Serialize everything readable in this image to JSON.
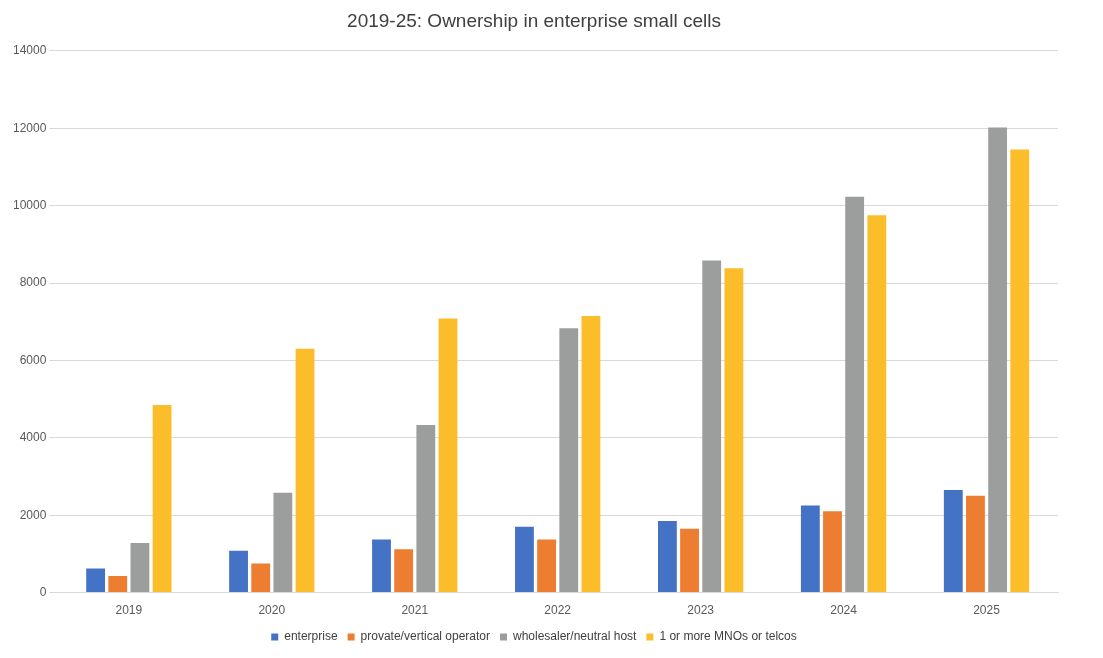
{
  "chart_data": {
    "type": "bar",
    "title": "2019-25: Ownership in enterprise small cells",
    "categories": [
      "2019",
      "2020",
      "2021",
      "2022",
      "2023",
      "2024",
      "2025"
    ],
    "series": [
      {
        "name": "enterprise",
        "color": "#4472c4",
        "values": [
          620,
          1080,
          1370,
          1700,
          1850,
          2250,
          2650
        ]
      },
      {
        "name": "provate/vertical operator",
        "color": "#ed7d31",
        "values": [
          430,
          750,
          1120,
          1370,
          1650,
          2100,
          2500
        ]
      },
      {
        "name": "wholesaler/neutral host",
        "color": "#9c9e9e",
        "values": [
          1280,
          2580,
          4330,
          6830,
          8580,
          10230,
          12020
        ]
      },
      {
        "name": "1 or more MNOs or telcos",
        "color": "#fbbd2a",
        "values": [
          4850,
          6300,
          7080,
          7150,
          8380,
          9750,
          11450
        ]
      }
    ],
    "ylim": [
      0,
      14000
    ],
    "yticks": [
      0,
      2000,
      4000,
      6000,
      8000,
      10000,
      12000,
      14000
    ],
    "grid": "y",
    "legend": "bottom"
  }
}
